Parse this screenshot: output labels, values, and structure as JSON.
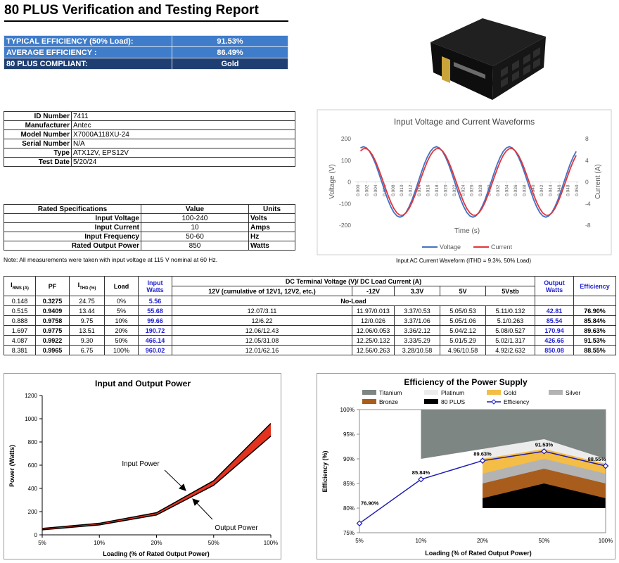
{
  "header": {
    "title": "80 PLUS Verification and Testing Report"
  },
  "summary": {
    "rows": [
      [
        "TYPICAL EFFICIENCY (50% Load):",
        "91.53%"
      ],
      [
        "AVERAGE EFFICIENCY :",
        "86.49%"
      ],
      [
        "80 PLUS COMPLIANT:",
        "Gold"
      ]
    ]
  },
  "product_info": {
    "rows": [
      [
        "ID Number",
        "7411"
      ],
      [
        "Manufacturer",
        "Antec"
      ],
      [
        "Model Number",
        "X7000A118XU-24"
      ],
      [
        "Serial Number",
        "N/A"
      ],
      [
        "Type",
        "ATX12V, EPS12V"
      ],
      [
        "Test Date",
        "5/20/24"
      ]
    ]
  },
  "rated_specs": {
    "header": [
      "Rated Specifications",
      "Value",
      "Units"
    ],
    "rows": [
      [
        "Input Voltage",
        "100-240",
        "Volts"
      ],
      [
        "Input Current",
        "10",
        "Amps"
      ],
      [
        "Input Frequency",
        "50-60",
        "Hz"
      ],
      [
        "Rated Output Power",
        "850",
        "Watts"
      ]
    ]
  },
  "note": "Note: All measurements were taken with input voltage at 115 V nominal at 60 Hz.",
  "test_table": {
    "header": {
      "irms": {
        "main": "I",
        "sub": "RMS (A)"
      },
      "pf": "PF",
      "ithd": {
        "main": "I",
        "sub": "THD (%)"
      },
      "load": "Load",
      "input": "Input Watts",
      "dc": "DC Terminal Voltage (V)/ DC Load Current (A)",
      "dc_cols": [
        "12V (cumulative of 12V1, 12V2, etc.)",
        "-12V",
        "3.3V",
        "5V",
        "5Vstb"
      ],
      "output": "Output Watts",
      "efficiency": "Efficiency"
    },
    "rows": [
      [
        "0.148",
        "0.3275",
        "24.75",
        "0%",
        "5.56",
        "No-Load"
      ],
      [
        "0.515",
        "0.9409",
        "13.44",
        "5%",
        "55.68",
        "12.07/3.11",
        "11.97/0.013",
        "3.37/0.53",
        "5.05/0.53",
        "5.11/0.132",
        "42.81",
        "76.90%"
      ],
      [
        "0.888",
        "0.9758",
        "9.75",
        "10%",
        "99.66",
        "12/6.22",
        "12/0.026",
        "3.37/1.06",
        "5.05/1.06",
        "5.1/0.263",
        "85.54",
        "85.84%"
      ],
      [
        "1.697",
        "0.9775",
        "13.51",
        "20%",
        "190.72",
        "12.06/12.43",
        "12.06/0.053",
        "3.36/2.12",
        "5.04/2.12",
        "5.08/0.527",
        "170.94",
        "89.63%"
      ],
      [
        "4.087",
        "0.9922",
        "9.30",
        "50%",
        "466.14",
        "12.05/31.08",
        "12.25/0.132",
        "3.33/5.29",
        "5.01/5.29",
        "5.02/1.317",
        "426.66",
        "91.53%"
      ],
      [
        "8.381",
        "0.9965",
        "6.75",
        "100%",
        "960.02",
        "12.01/62.16",
        "12.56/0.263",
        "3.28/10.58",
        "4.96/10.58",
        "4.92/2.632",
        "850.08",
        "88.55%"
      ]
    ]
  },
  "chart_data": [
    {
      "type": "line",
      "title": "Input Voltage and Current Waveforms",
      "x_label": "Time (s)",
      "y_label": "Voltage (V)",
      "y2_label": "Current (A)",
      "caption": "Input AC Current Waveform (ITHD = 9.3%, 50% Load)",
      "x": [
        0.00056,
        0.00125,
        0.00194,
        0.00264,
        0.00333,
        0.00403,
        0.00472,
        0.00542,
        0.00611,
        0.00681,
        0.0075,
        0.00819,
        0.00889,
        0.00958,
        0.01028,
        0.01097,
        0.01167,
        0.01236,
        0.01306,
        0.01375,
        0.01444,
        0.01514,
        0.01583,
        0.01653,
        0.01722,
        0.01792,
        0.01861,
        0.01931,
        0.02,
        0.02069,
        0.02139,
        0.02208,
        0.02278,
        0.02347,
        0.02417,
        0.02486,
        0.02556,
        0.02625,
        0.02694,
        0.02764,
        0.02833,
        0.02903,
        0.02972,
        0.03042,
        0.03111,
        0.03181,
        0.0325,
        0.03319,
        0.03389,
        0.03458,
        0.03528,
        0.03597,
        0.03667,
        0.03736,
        0.03806,
        0.03875,
        0.03944,
        0.04014,
        0.04083,
        0.04153,
        0.04222,
        0.04292,
        0.04361,
        0.04431,
        0.045,
        0.04569,
        0.04639,
        0.04708,
        0.04778,
        0.04847,
        0.04917,
        0.04986
      ],
      "series": [
        {
          "name": "Voltage",
          "color": "#4472c4",
          "values": [
            157,
            163,
            157,
            141,
            115,
            82,
            42,
            0,
            -42,
            -82,
            -115,
            -141,
            -157,
            -163,
            -157,
            -141,
            -115,
            -82,
            -42,
            0,
            42,
            82,
            115,
            141,
            157,
            163,
            157,
            141,
            115,
            82,
            42,
            0,
            -42,
            -82,
            -115,
            -141,
            -157,
            -163,
            -157,
            -141,
            -115,
            -82,
            -42,
            0,
            42,
            82,
            115,
            141,
            157,
            163,
            157,
            141,
            115,
            82,
            42,
            0,
            -42,
            -82,
            -115,
            -141,
            -157,
            -163,
            -157,
            -141,
            -115,
            -82,
            -42,
            0,
            42,
            82,
            115,
            141
          ]
        },
        {
          "name": "Current",
          "color": "#e0363c",
          "axis": "y2",
          "values": [
            5.73,
            6.15,
            6.15,
            5.73,
            4.92,
            3.77,
            2.37,
            0.81,
            -0.81,
            -2.37,
            -3.77,
            -4.92,
            -5.73,
            -6.15,
            -6.15,
            -5.73,
            -4.92,
            -3.77,
            -2.37,
            -0.81,
            0.81,
            2.37,
            3.77,
            4.92,
            5.73,
            6.15,
            6.15,
            5.73,
            4.92,
            3.77,
            2.37,
            0.81,
            -0.81,
            -2.37,
            -3.77,
            -4.92,
            -5.73,
            -6.15,
            -6.15,
            -5.73,
            -4.92,
            -3.77,
            -2.37,
            -0.81,
            0.81,
            2.37,
            3.77,
            4.92,
            5.73,
            6.15,
            6.15,
            5.73,
            4.92,
            3.77,
            2.37,
            0.81,
            -0.81,
            -2.37,
            -3.77,
            -4.92,
            -5.73,
            -6.15,
            -6.15,
            -5.73,
            -4.92,
            -3.77,
            -2.37,
            -0.81,
            0.81,
            2.37,
            3.77,
            4.92
          ]
        }
      ],
      "xlim": [
        0,
        0.05
      ],
      "xticks": [
        {
          "value": 0,
          "label": "0.000"
        },
        {
          "value": 0.002,
          "label": "0.002"
        },
        {
          "value": 0.004,
          "label": "0.004"
        },
        {
          "value": 0.006,
          "label": "0.006"
        },
        {
          "value": 0.008,
          "label": "0.008"
        },
        {
          "value": 0.01,
          "label": "0.010"
        },
        {
          "value": 0.012,
          "label": "0.012"
        },
        {
          "value": 0.014,
          "label": "0.014"
        },
        {
          "value": 0.016,
          "label": "0.016"
        },
        {
          "value": 0.018,
          "label": "0.018"
        },
        {
          "value": 0.02,
          "label": "0.020"
        },
        {
          "value": 0.022,
          "label": "0.022"
        },
        {
          "value": 0.024,
          "label": "0.024"
        },
        {
          "value": 0.026,
          "label": "0.026"
        },
        {
          "value": 0.028,
          "label": "0.028"
        },
        {
          "value": 0.03,
          "label": "0.030"
        },
        {
          "value": 0.032,
          "label": "0.032"
        },
        {
          "value": 0.034,
          "label": "0.034"
        },
        {
          "value": 0.036,
          "label": "0.036"
        },
        {
          "value": 0.038,
          "label": "0.038"
        },
        {
          "value": 0.04,
          "label": "0.040"
        },
        {
          "value": 0.042,
          "label": "0.042"
        },
        {
          "value": 0.044,
          "label": "0.044"
        },
        {
          "value": 0.046,
          "label": "0.046"
        },
        {
          "value": 0.048,
          "label": "0.048"
        },
        {
          "value": 0.05,
          "label": "0.050"
        }
      ],
      "ylim": [
        -200,
        200
      ],
      "yticks": [
        -200,
        -100,
        0,
        100,
        200
      ],
      "y2lim": [
        -8,
        8
      ],
      "y2ticks": [
        -8,
        -4,
        0,
        4,
        8
      ],
      "grid": false,
      "legend": "bottom"
    },
    {
      "type": "line",
      "title": "Input and Output Power",
      "x_label": "Loading (% of Rated Output Power)",
      "y_label": "Power (Watts)",
      "categories": [
        "5%",
        "10%",
        "20%",
        "50%",
        "100%"
      ],
      "series": [
        {
          "name": "Input Power",
          "color": "#000000",
          "values": [
            55.68,
            99.66,
            190.72,
            466.14,
            960.02
          ]
        },
        {
          "name": "Output Power",
          "color": "#000000",
          "values": [
            42.81,
            85.54,
            170.94,
            426.66,
            850.08
          ]
        }
      ],
      "fill_between_color": "#e5321f",
      "ylim": [
        0,
        1200
      ],
      "yticks": [
        0,
        200,
        400,
        600,
        800,
        1000,
        1200
      ],
      "grid": false
    },
    {
      "type": "line",
      "title": "Efficiency of the Power Supply",
      "x_label": "Loading (% of Rated Output Power)",
      "y_label": "Efficiency (%)",
      "categories": [
        "5%",
        "10%",
        "20%",
        "50%",
        "100%"
      ],
      "bands": [
        {
          "name": "Titanium",
          "color": "#7d8682",
          "values": [
            null,
            90,
            92,
            94,
            90
          ]
        },
        {
          "name": "Platinum",
          "color": "#ececec",
          "values": [
            null,
            null,
            90,
            92,
            89
          ]
        },
        {
          "name": "Gold",
          "color": "#f4bd46",
          "values": [
            null,
            null,
            87,
            90,
            87
          ]
        },
        {
          "name": "Silver",
          "color": "#b3b3b3",
          "values": [
            null,
            null,
            85,
            88,
            85
          ]
        },
        {
          "name": "Bronze",
          "color": "#a85d1c",
          "values": [
            null,
            null,
            82,
            85,
            82
          ]
        },
        {
          "name": "80 PLUS",
          "color": "#000000",
          "values": [
            null,
            null,
            80,
            80,
            80
          ]
        }
      ],
      "series": [
        {
          "name": "Efficiency",
          "color": "#1c1cb4",
          "marker": "diamond",
          "values": [
            76.9,
            85.84,
            89.63,
            91.53,
            88.55
          ],
          "value_labels": [
            "76.90%",
            "85.84%",
            "89.63%",
            "91.53%",
            "88.55%"
          ]
        }
      ],
      "ylim": [
        75,
        100
      ],
      "yticks": [
        {
          "value": 75,
          "label": "75%"
        },
        {
          "value": 80,
          "label": "80%"
        },
        {
          "value": 85,
          "label": "85%"
        },
        {
          "value": 90,
          "label": "90%"
        },
        {
          "value": 95,
          "label": "95%"
        },
        {
          "value": 100,
          "label": "100%"
        }
      ],
      "grid": false,
      "legend": "top"
    }
  ]
}
